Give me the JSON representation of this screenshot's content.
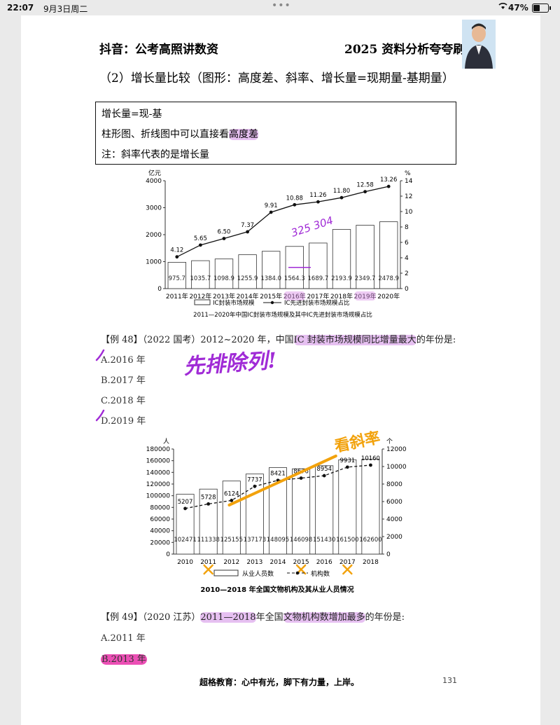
{
  "status_bar": {
    "time": "22:07",
    "date": "9月3日周二",
    "battery": "47%",
    "battery_level": 0.47
  },
  "header": {
    "left": "抖音：公考高照讲数资",
    "right": "2025 资料分析夸夸刷"
  },
  "section_title": "（2）增长量比较（图形：高度差、斜率、增长量=现期量-基期量）",
  "note_box": {
    "line1": "增长量=现-基",
    "line2_pre": "柱形图、折线图中可以直接看",
    "line2_hl": "高度差",
    "line3": "注：斜率代表的是增长量"
  },
  "chart1": {
    "type": "bar+line",
    "left_unit": "亿元",
    "right_unit": "%",
    "categories": [
      "2011年",
      "2012年",
      "2013年",
      "2014年",
      "2015年",
      "2016年",
      "2017年",
      "2018年",
      "2019年",
      "2020年"
    ],
    "bar_values": [
      975.7,
      1035.7,
      1098.9,
      1255.9,
      1384.0,
      1564.3,
      1689.7,
      2193.9,
      2349.7,
      2478.9
    ],
    "bar_labels": [
      "975.7",
      "1035.7",
      "1098.9",
      "1255.9",
      "1384.0",
      "1564.3",
      "1689.7",
      "2193.9",
      "2349.7",
      "2478.9"
    ],
    "line_values": [
      4.12,
      5.65,
      6.5,
      7.37,
      9.91,
      10.88,
      11.26,
      11.8,
      12.58,
      13.26
    ],
    "line_labels": [
      "4.12",
      "5.65",
      "6.50",
      "7.37",
      "9.91",
      "10.88",
      "11.26",
      "11.80",
      "12.58",
      "13.26"
    ],
    "left_ticks": [
      "0",
      "1000",
      "2000",
      "3000",
      "4000"
    ],
    "right_ticks": [
      "0",
      "2",
      "4",
      "6",
      "8",
      "10",
      "12",
      "14"
    ],
    "left_max": 4000,
    "right_max": 14,
    "legend_bar": "IC封装市场规模",
    "legend_line": "IC先进封装市场规模占比",
    "caption": "2011—2020年中国IC封装市场规模及其中IC先进封装市场规模占比",
    "annotation": "325 304"
  },
  "q48": {
    "pre": "【例 48】（2022 国考）2012~2020 年，中国",
    "hl": "IC 封装市场规模同比增量最大",
    "post": "的年份是:",
    "options": [
      "A.2016 年",
      "B.2017 年",
      "C.2018 年",
      "D.2019 年"
    ],
    "handwriting": "先排除列!"
  },
  "chart2": {
    "type": "bar+line",
    "left_unit": "人",
    "right_unit": "个",
    "categories": [
      "2010",
      "2011",
      "2012",
      "2013",
      "2014",
      "2015",
      "2016",
      "2017",
      "2018"
    ],
    "bar_values": [
      102471,
      111338,
      125155,
      137173,
      148095,
      146098,
      151430,
      161500,
      162600
    ],
    "bar_labels": [
      "102471",
      "111338",
      "125155",
      "137173",
      "148095",
      "146098",
      "151430",
      "161500",
      "162600"
    ],
    "line_values": [
      5207,
      5728,
      6124,
      7737,
      8421,
      8676,
      8954,
      9931,
      10160
    ],
    "line_labels": [
      "5207",
      "5728",
      "6124",
      "7737",
      "8421",
      "8676",
      "8954",
      "9931",
      "10160"
    ],
    "left_ticks": [
      "0",
      "20000",
      "40000",
      "60000",
      "80000",
      "100000",
      "120000",
      "140000",
      "160000",
      "180000"
    ],
    "right_ticks": [
      "0",
      "2000",
      "4000",
      "6000",
      "8000",
      "10000",
      "12000"
    ],
    "left_max": 180000,
    "right_max": 12000,
    "legend_bar": "从业人员数",
    "legend_line": "机构数",
    "caption": "2010—2018 年全国文物机构及其从业人员情况",
    "annotation": "看斜率",
    "x_marks": [
      "2011",
      "2015",
      "2017"
    ]
  },
  "q49": {
    "pre": "【例 49】（2020 江苏）",
    "hl1": "2011—2018",
    "mid": "年全国",
    "hl2": "文物机构数增加最多",
    "post": "的年份是:",
    "options": [
      "A.2011 年",
      "B.2013 年"
    ]
  },
  "footer": {
    "text": "超格教育：心中有光，脚下有力量，上岸。",
    "page": "131"
  },
  "colors": {
    "highlight": "#d98ce6",
    "annotation_purple": "#a02bd6",
    "annotation_orange": "#f2a20c",
    "ink": "#111111"
  }
}
